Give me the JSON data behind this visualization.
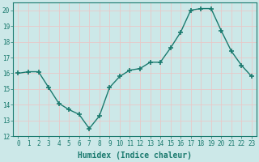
{
  "x": [
    0,
    1,
    2,
    3,
    4,
    5,
    6,
    7,
    8,
    9,
    10,
    11,
    12,
    13,
    14,
    15,
    16,
    17,
    18,
    19,
    20,
    21,
    22,
    23
  ],
  "y": [
    16.0,
    16.1,
    16.1,
    15.1,
    14.1,
    13.7,
    13.4,
    12.5,
    13.3,
    15.1,
    15.8,
    16.2,
    16.3,
    16.7,
    16.7,
    17.6,
    18.6,
    20.0,
    20.1,
    20.1,
    18.7,
    17.4,
    16.5,
    15.8
  ],
  "line_color": "#1a7a6e",
  "marker": "+",
  "marker_size": 4,
  "bg_color": "#cce8e8",
  "grid_color": "#e8c8c8",
  "xlabel": "Humidex (Indice chaleur)",
  "ylim": [
    12,
    20.5
  ],
  "xlim": [
    -0.5,
    23.5
  ],
  "yticks": [
    12,
    13,
    14,
    15,
    16,
    17,
    18,
    19,
    20
  ],
  "xticks": [
    0,
    1,
    2,
    3,
    4,
    5,
    6,
    7,
    8,
    9,
    10,
    11,
    12,
    13,
    14,
    15,
    16,
    17,
    18,
    19,
    20,
    21,
    22,
    23
  ],
  "tick_fontsize": 5.5,
  "xlabel_fontsize": 7,
  "label_color": "#1a7a6e",
  "linewidth": 1.0,
  "marker_linewidth": 1.2
}
